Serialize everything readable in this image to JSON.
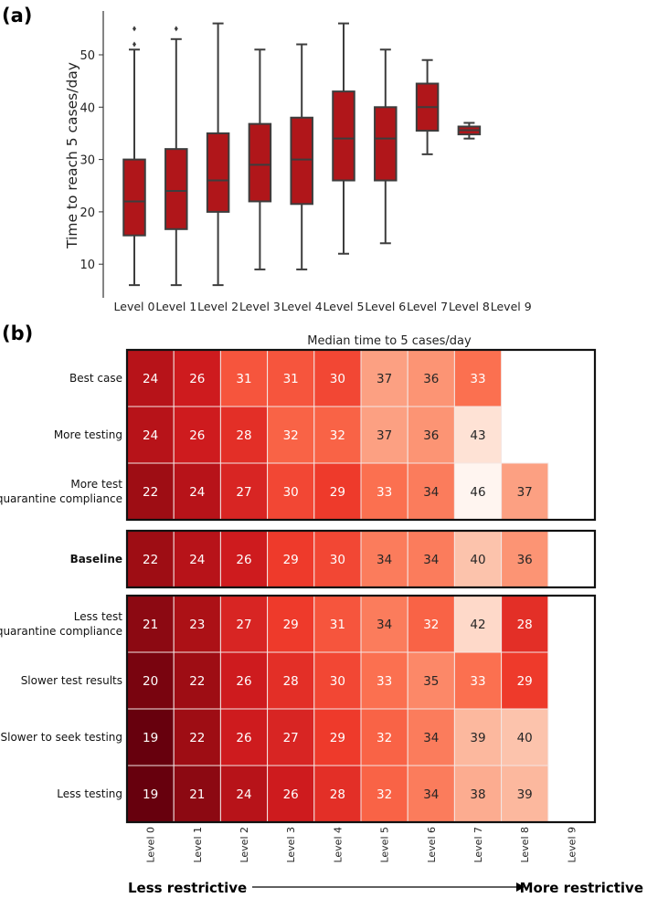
{
  "chart_data": [
    {
      "type": "box",
      "panel_label": "(a)",
      "ylabel": "Time to reach 5 cases/day",
      "ylim": [
        3,
        58
      ],
      "yticks": [
        10,
        20,
        30,
        40,
        50
      ],
      "categories": [
        "Level 0",
        "Level 1",
        "Level 2",
        "Level 3",
        "Level 4",
        "Level 5",
        "Level 6",
        "Level 7",
        "Level 8",
        "Level 9"
      ],
      "boxes": [
        {
          "whislo": 6,
          "q1": 15.5,
          "med": 22,
          "q3": 30,
          "whishi": 51,
          "fliers": [
            52,
            55
          ]
        },
        {
          "whislo": 6,
          "q1": 16.7,
          "med": 24,
          "q3": 32,
          "whishi": 53,
          "fliers": [
            55
          ]
        },
        {
          "whislo": 6,
          "q1": 20,
          "med": 26,
          "q3": 35,
          "whishi": 56,
          "fliers": []
        },
        {
          "whislo": 9,
          "q1": 22,
          "med": 29,
          "q3": 36.8,
          "whishi": 51,
          "fliers": []
        },
        {
          "whislo": 9,
          "q1": 21.5,
          "med": 30,
          "q3": 38,
          "whishi": 52,
          "fliers": []
        },
        {
          "whislo": 12,
          "q1": 26,
          "med": 34,
          "q3": 43,
          "whishi": 56,
          "fliers": []
        },
        {
          "whislo": 14,
          "q1": 26,
          "med": 34,
          "q3": 40,
          "whishi": 51,
          "fliers": []
        },
        {
          "whislo": 31,
          "q1": 35.5,
          "med": 40,
          "q3": 44.5,
          "whishi": 49,
          "fliers": []
        },
        {
          "whislo": 34,
          "q1": 34.8,
          "med": 35.6,
          "q3": 36.3,
          "whishi": 37,
          "fliers": []
        },
        null
      ],
      "box_color": "#b0161a",
      "line_color": "#3d3d3d"
    },
    {
      "type": "heatmap",
      "panel_label": "(b)",
      "title": "Median time to 5 cases/day",
      "columns": [
        "Level 0",
        "Level 1",
        "Level 2",
        "Level 3",
        "Level 4",
        "Level 5",
        "Level 6",
        "Level 7",
        "Level 8",
        "Level 9"
      ],
      "groups": [
        {
          "rows": [
            {
              "label": [
                "Best case"
              ],
              "bold": false,
              "values": [
                24,
                26,
                31,
                31,
                30,
                37,
                36,
                33,
                null,
                null
              ]
            },
            {
              "label": [
                "More testing"
              ],
              "bold": false,
              "values": [
                24,
                26,
                28,
                32,
                32,
                37,
                36,
                43,
                null,
                null
              ]
            },
            {
              "label": [
                "More test",
                "quarantine compliance"
              ],
              "bold": false,
              "values": [
                22,
                24,
                27,
                30,
                29,
                33,
                34,
                46,
                37,
                null
              ]
            }
          ]
        },
        {
          "rows": [
            {
              "label": [
                "Baseline"
              ],
              "bold": true,
              "values": [
                22,
                24,
                26,
                29,
                30,
                34,
                34,
                40,
                36,
                null
              ]
            }
          ]
        },
        {
          "rows": [
            {
              "label": [
                "Less test",
                "quarantine compliance"
              ],
              "bold": false,
              "values": [
                21,
                23,
                27,
                29,
                31,
                34,
                32,
                42,
                28,
                null
              ]
            },
            {
              "label": [
                "Slower test results"
              ],
              "bold": false,
              "values": [
                20,
                22,
                26,
                28,
                30,
                33,
                35,
                33,
                29,
                null
              ]
            },
            {
              "label": [
                "Slower to seek testing"
              ],
              "bold": false,
              "values": [
                19,
                22,
                26,
                27,
                29,
                32,
                34,
                39,
                40,
                null
              ]
            },
            {
              "label": [
                "Less testing"
              ],
              "bold": false,
              "values": [
                19,
                21,
                24,
                26,
                28,
                32,
                34,
                38,
                39,
                null
              ]
            }
          ]
        }
      ],
      "color_range": [
        19,
        46
      ],
      "colormap": "Reds (reversed: low = dark)",
      "footer_left": "Less restrictive",
      "footer_right": "More restrictive"
    }
  ]
}
